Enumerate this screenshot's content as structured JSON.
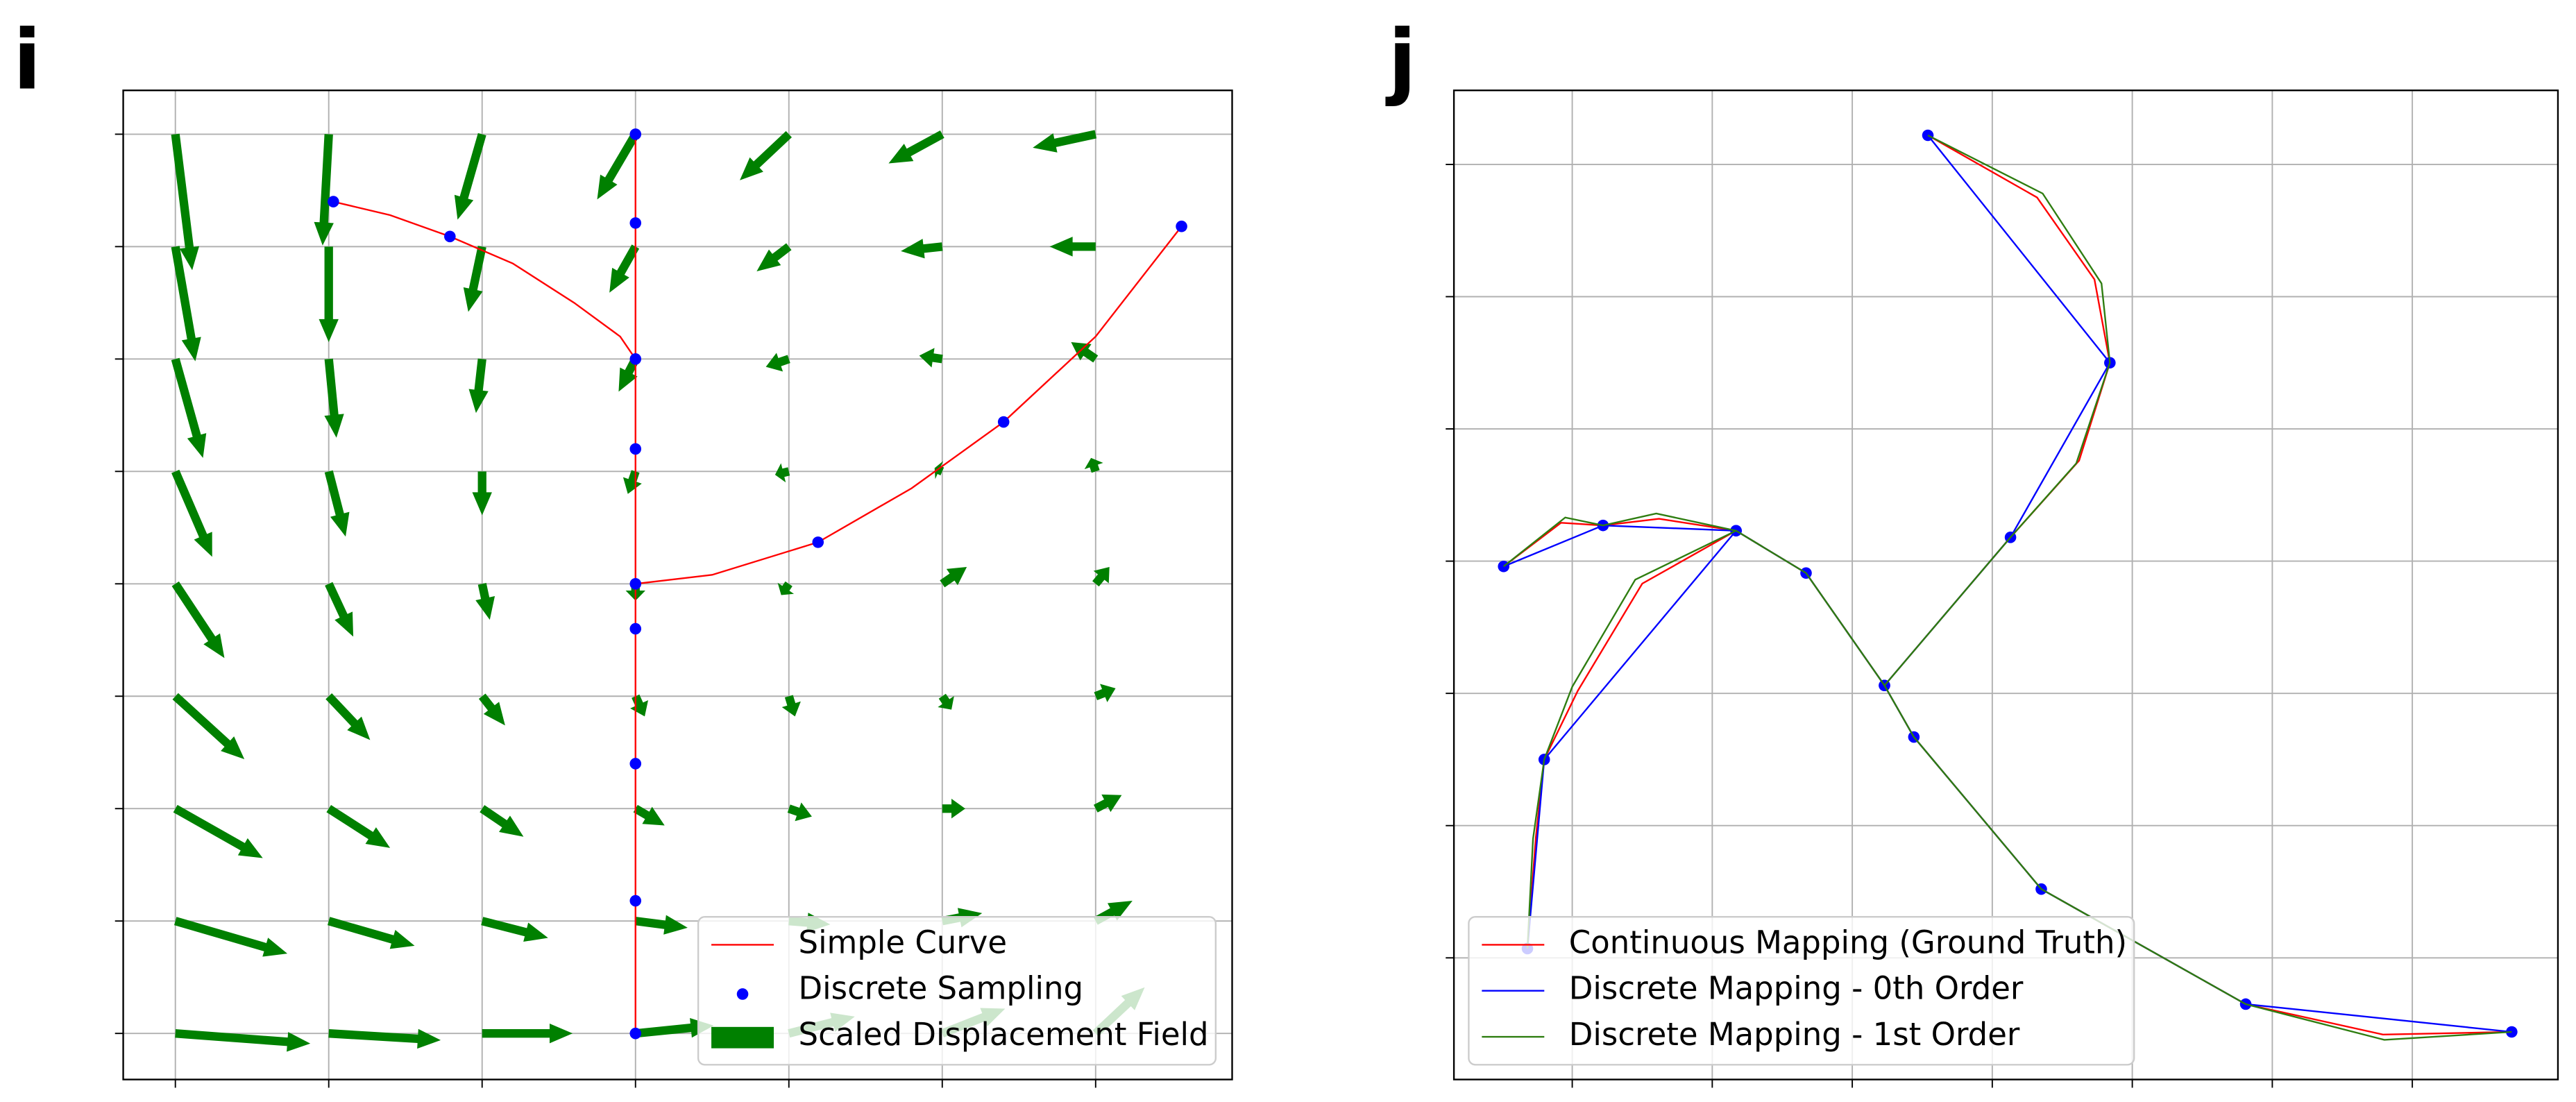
{
  "chart_data": [
    {
      "type": "quiver",
      "label": "i",
      "xlim": [
        -0.34,
        6.89
      ],
      "ylim": [
        -0.41,
        8.39
      ],
      "xticks": [
        0,
        1,
        2,
        3,
        4,
        5,
        6
      ],
      "yticks": [
        0,
        1,
        2,
        3,
        4,
        5,
        6,
        7,
        8
      ],
      "grid": true,
      "legend": "lower right",
      "series": [
        {
          "name": "Simple Curve",
          "type": "line",
          "color": "#ff0000",
          "x": [
            1.03,
            1.4,
            1.79,
            2.2,
            2.6,
            2.9,
            3,
            null,
            3,
            3,
            null,
            3,
            3.5,
            4.19,
            4.8,
            5.4,
            6.0,
            6.56
          ],
          "y": [
            7.4,
            7.28,
            7.09,
            6.85,
            6.5,
            6.2,
            6.0,
            null,
            0,
            8,
            null,
            4.0,
            4.08,
            4.37,
            4.85,
            5.44,
            6.2,
            7.18
          ]
        },
        {
          "name": "Discrete Sampling",
          "type": "scatter",
          "color": "#0000ff",
          "x": [
            3,
            3,
            3,
            3,
            3,
            3,
            3,
            3,
            3,
            1.03,
            1.79,
            4.19,
            5.4,
            6.56
          ],
          "y": [
            8,
            7.21,
            6.0,
            5.2,
            4.0,
            3.6,
            2.4,
            1.18,
            0,
            7.4,
            7.09,
            4.37,
            5.44,
            7.18
          ]
        },
        {
          "name": "Scaled Displacement Field",
          "type": "quiver",
          "color": "#008000",
          "x": [
            0,
            0,
            0,
            0,
            0,
            0,
            0,
            0,
            0,
            1,
            1,
            1,
            1,
            1,
            1,
            1,
            1,
            1,
            2,
            2,
            2,
            2,
            2,
            2,
            2,
            2,
            2,
            3,
            3,
            3,
            3,
            3,
            3,
            3,
            3,
            3,
            4,
            4,
            4,
            4,
            4,
            4,
            4,
            4,
            4,
            5,
            5,
            5,
            5,
            5,
            5,
            5,
            5,
            5,
            6,
            6,
            6,
            6,
            6,
            6,
            6,
            6,
            6
          ],
          "y": [
            8,
            7,
            6,
            5,
            4,
            3,
            2,
            1,
            0,
            8,
            7,
            6,
            5,
            4,
            3,
            2,
            1,
            0,
            8,
            7,
            6,
            5,
            4,
            3,
            2,
            1,
            0,
            8,
            7,
            6,
            5,
            4,
            3,
            2,
            1,
            0,
            8,
            7,
            6,
            5,
            4,
            3,
            2,
            1,
            0,
            8,
            7,
            6,
            5,
            4,
            3,
            2,
            1,
            0,
            8,
            7,
            6,
            5,
            4,
            3,
            2,
            1,
            0
          ],
          "u": [
            0.11,
            0.13,
            0.18,
            0.24,
            0.32,
            0.45,
            0.57,
            0.73,
            0.88,
            -0.04,
            0,
            0.05,
            0.11,
            0.16,
            0.27,
            0.4,
            0.56,
            0.73,
            -0.16,
            -0.09,
            -0.04,
            0,
            0.05,
            0.15,
            0.27,
            0.43,
            0.59,
            -0.25,
            -0.17,
            -0.11,
            -0.05,
            0,
            0.06,
            0.19,
            0.34,
            0.51,
            -0.32,
            -0.21,
            -0.15,
            -0.09,
            -0.05,
            0.04,
            0.15,
            0.27,
            0.43,
            -0.35,
            -0.27,
            -0.15,
            -0.05,
            0.16,
            0.06,
            0.15,
            0.26,
            0.41,
            -0.41,
            -0.3,
            -0.16,
            -0.03,
            0.09,
            0.13,
            0.17,
            0.24,
            0.32
          ],
          "v": [
            -1.21,
            -1.02,
            -0.88,
            -0.76,
            -0.66,
            -0.56,
            -0.44,
            -0.29,
            -0.09,
            -0.99,
            -0.85,
            -0.7,
            -0.58,
            -0.47,
            -0.39,
            -0.35,
            -0.22,
            -0.06,
            -0.76,
            -0.58,
            -0.48,
            -0.39,
            -0.32,
            -0.26,
            -0.25,
            -0.15,
            0,
            -0.58,
            -0.41,
            -0.29,
            -0.2,
            -0.15,
            -0.18,
            -0.15,
            -0.06,
            0.07,
            -0.41,
            -0.22,
            -0.07,
            -0.03,
            -0.1,
            -0.18,
            -0.07,
            -0.03,
            0.15,
            -0.26,
            -0.04,
            0.03,
            0.03,
            0.15,
            -0.12,
            0,
            0.07,
            0.22,
            -0.12,
            0,
            0.15,
            0.12,
            0.15,
            0.07,
            0.12,
            0.18,
            0.41
          ]
        }
      ]
    },
    {
      "type": "line",
      "label": "j",
      "xlim": [
        0.155,
        8.04
      ],
      "ylim": [
        0.08,
        7.56
      ],
      "xticks": [
        1,
        2,
        3,
        4,
        5,
        6,
        7
      ],
      "yticks": [
        1,
        2,
        3,
        4,
        5,
        6,
        7
      ],
      "grid": true,
      "legend": "lower left",
      "series": [
        {
          "name": "Continuous Mapping (Ground Truth)",
          "type": "line",
          "color": "#ff0000",
          "x": [
            3.54,
            4.32,
            4.73,
            4.84,
            4.62,
            4.13,
            3.23,
            3.44,
            4.35,
            5.81,
            6.79,
            7.71,
            null,
            0.51,
            0.92,
            1.22,
            1.62,
            2.17,
            2.67,
            3.23,
            null,
            2.17,
            1.5,
            1.04,
            0.8,
            0.74,
            0.68
          ],
          "y": [
            7.22,
            6.75,
            6.13,
            5.5,
            4.76,
            4.18,
            3.06,
            2.67,
            1.52,
            0.65,
            0.42,
            0.44,
            null,
            3.96,
            4.29,
            4.27,
            4.32,
            4.23,
            3.91,
            3.06,
            null,
            4.23,
            3.83,
            3.02,
            2.5,
            1.91,
            1.07
          ]
        },
        {
          "name": "Discrete Mapping - 0th Order",
          "type": "line",
          "markers": true,
          "color": "#0000ff",
          "x": [
            3.54,
            4.84,
            4.13,
            3.23,
            2.67,
            2.17,
            1.22,
            0.51,
            null,
            2.17,
            0.8,
            0.68,
            null,
            3.23,
            3.44,
            4.35,
            5.81,
            7.71
          ],
          "y": [
            7.22,
            5.5,
            4.18,
            3.06,
            3.91,
            4.23,
            4.27,
            3.96,
            null,
            4.23,
            2.5,
            1.07,
            null,
            3.06,
            2.67,
            1.52,
            0.65,
            0.44
          ]
        },
        {
          "name": "Discrete Mapping - 1st Order",
          "type": "line",
          "color": "#2e7d10",
          "x": [
            3.54,
            4.36,
            4.78,
            4.84,
            4.6,
            4.13,
            3.23,
            3.44,
            4.35,
            5.81,
            6.8,
            7.71,
            null,
            0.51,
            0.95,
            1.22,
            1.6,
            2.17,
            2.67,
            3.23,
            null,
            2.17,
            1.45,
            1.0,
            0.8,
            0.72,
            0.68
          ],
          "y": [
            7.22,
            6.78,
            6.1,
            5.5,
            4.74,
            4.18,
            3.06,
            2.67,
            1.52,
            0.65,
            0.38,
            0.44,
            null,
            3.96,
            4.33,
            4.27,
            4.36,
            4.23,
            3.91,
            3.06,
            null,
            4.23,
            3.86,
            3.05,
            2.5,
            1.9,
            1.07
          ]
        }
      ]
    }
  ]
}
